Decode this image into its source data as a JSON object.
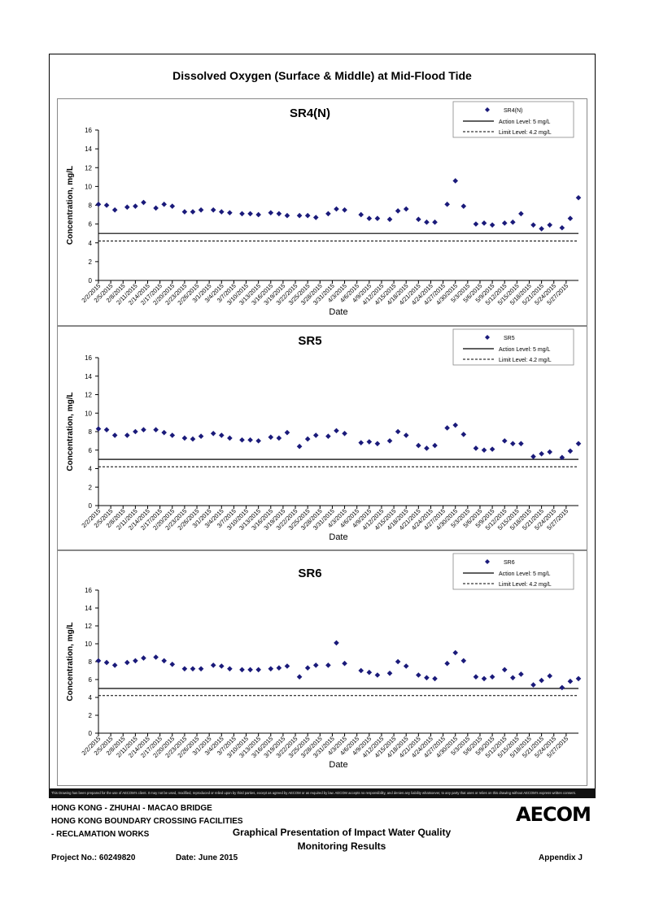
{
  "page": {
    "main_title": "Dissolved Oxygen (Surface & Middle) at Mid-Flood Tide",
    "disclaimer": "This Drawing has been prepared for the use of AECOM's client. It may not be used, modified, reproduced or relied upon by third parties, except as agreed by AECOM or as required by law. AECOM accepts no responsibility, and denies any liability whatsoever, to any party that uses or relies on this drawing without AECOM's express written consent.",
    "footer": {
      "line1": "HONG KONG - ZHUHAI - MACAO BRIDGE",
      "line2": "HONG KONG BOUNDARY CROSSING FACILITIES",
      "line3": "- RECLAMATION WORKS",
      "report_title_1": "Graphical Presentation of Impact Water Quality",
      "report_title_2": "Monitoring Results",
      "project_no": "Project No.: 60249820",
      "date": "Date: June 2015",
      "appendix": "Appendix J",
      "logo": "AECOM"
    }
  },
  "chart_data": [
    {
      "type": "scatter",
      "title": "SR4(N)",
      "xlabel": "Date",
      "ylabel": "Concentration, mg/L",
      "ylim": [
        0,
        16
      ],
      "yticks": [
        0,
        2,
        4,
        6,
        8,
        10,
        12,
        14,
        16
      ],
      "xticks": [
        "2/2/2015",
        "2/5/2015",
        "2/8/2015",
        "2/11/2015",
        "2/14/2015",
        "2/17/2015",
        "2/20/2015",
        "2/23/2015",
        "2/26/2015",
        "3/1/2015",
        "3/4/2015",
        "3/7/2015",
        "3/10/2015",
        "3/13/2015",
        "3/16/2015",
        "3/19/2015",
        "3/22/2015",
        "3/25/2015",
        "3/28/2015",
        "3/31/2015",
        "4/3/2015",
        "4/6/2015",
        "4/9/2015",
        "4/12/2015",
        "4/15/2015",
        "4/18/2015",
        "4/21/2015",
        "4/24/2015",
        "4/27/2015",
        "4/30/2015",
        "5/3/2015",
        "5/6/2015",
        "5/9/2015",
        "5/12/2015",
        "5/15/2015",
        "5/18/2015",
        "5/21/2015",
        "5/24/2015",
        "5/27/2015"
      ],
      "legend": {
        "position": "top-right",
        "entries": [
          "SR4(N)",
          "Action Level: 5 mg/L",
          "Limit Level: 4.2 mg/L"
        ]
      },
      "action_level": 5,
      "limit_level": 4.2,
      "series": [
        {
          "name": "SR4(N)",
          "points": [
            [
              "2/2/2015",
              8.1
            ],
            [
              "2/4/2015",
              8.0
            ],
            [
              "2/6/2015",
              7.5
            ],
            [
              "2/9/2015",
              7.8
            ],
            [
              "2/11/2015",
              7.9
            ],
            [
              "2/13/2015",
              8.3
            ],
            [
              "2/16/2015",
              7.7
            ],
            [
              "2/18/2015",
              8.1
            ],
            [
              "2/20/2015",
              7.9
            ],
            [
              "2/23/2015",
              7.3
            ],
            [
              "2/25/2015",
              7.3
            ],
            [
              "2/27/2015",
              7.5
            ],
            [
              "3/2/2015",
              7.5
            ],
            [
              "3/4/2015",
              7.3
            ],
            [
              "3/6/2015",
              7.2
            ],
            [
              "3/9/2015",
              7.1
            ],
            [
              "3/11/2015",
              7.1
            ],
            [
              "3/13/2015",
              7.0
            ],
            [
              "3/16/2015",
              7.2
            ],
            [
              "3/18/2015",
              7.1
            ],
            [
              "3/20/2015",
              6.9
            ],
            [
              "3/23/2015",
              6.9
            ],
            [
              "3/25/2015",
              6.9
            ],
            [
              "3/27/2015",
              6.7
            ],
            [
              "3/30/2015",
              7.1
            ],
            [
              "4/1/2015",
              7.6
            ],
            [
              "4/3/2015",
              7.5
            ],
            [
              "4/7/2015",
              7.0
            ],
            [
              "4/9/2015",
              6.6
            ],
            [
              "4/11/2015",
              6.6
            ],
            [
              "4/14/2015",
              6.5
            ],
            [
              "4/16/2015",
              7.4
            ],
            [
              "4/18/2015",
              7.6
            ],
            [
              "4/21/2015",
              6.5
            ],
            [
              "4/23/2015",
              6.2
            ],
            [
              "4/25/2015",
              6.2
            ],
            [
              "4/28/2015",
              8.1
            ],
            [
              "4/30/2015",
              10.6
            ],
            [
              "5/2/2015",
              7.9
            ],
            [
              "5/5/2015",
              6.0
            ],
            [
              "5/7/2015",
              6.1
            ],
            [
              "5/9/2015",
              5.9
            ],
            [
              "5/12/2015",
              6.1
            ],
            [
              "5/14/2015",
              6.2
            ],
            [
              "5/16/2015",
              7.1
            ],
            [
              "5/19/2015",
              5.9
            ],
            [
              "5/21/2015",
              5.5
            ],
            [
              "5/23/2015",
              5.9
            ],
            [
              "5/26/2015",
              5.6
            ],
            [
              "5/28/2015",
              6.6
            ],
            [
              "5/30/2015",
              8.8
            ]
          ]
        }
      ]
    },
    {
      "type": "scatter",
      "title": "SR5",
      "xlabel": "Date",
      "ylabel": "Concentration, mg/L",
      "ylim": [
        0,
        16
      ],
      "yticks": [
        0,
        2,
        4,
        6,
        8,
        10,
        12,
        14,
        16
      ],
      "xticks": [
        "2/2/2015",
        "2/5/2015",
        "2/8/2015",
        "2/11/2015",
        "2/14/2015",
        "2/17/2015",
        "2/20/2015",
        "2/23/2015",
        "2/26/2015",
        "3/1/2015",
        "3/4/2015",
        "3/7/2015",
        "3/10/2015",
        "3/13/2015",
        "3/16/2015",
        "3/19/2015",
        "3/22/2015",
        "3/25/2015",
        "3/28/2015",
        "3/31/2015",
        "4/3/2015",
        "4/6/2015",
        "4/9/2015",
        "4/12/2015",
        "4/15/2015",
        "4/18/2015",
        "4/21/2015",
        "4/24/2015",
        "4/27/2015",
        "4/30/2015",
        "5/3/2015",
        "5/6/2015",
        "5/9/2015",
        "5/12/2015",
        "5/15/2015",
        "5/18/2015",
        "5/21/2015",
        "5/24/2015",
        "5/27/2015"
      ],
      "legend": {
        "position": "top-right",
        "entries": [
          "SR5",
          "Action Level: 5 mg/L",
          "Limit Level: 4.2 mg/L"
        ]
      },
      "action_level": 5,
      "limit_level": 4.2,
      "series": [
        {
          "name": "SR5",
          "points": [
            [
              "2/2/2015",
              8.3
            ],
            [
              "2/4/2015",
              8.2
            ],
            [
              "2/6/2015",
              7.6
            ],
            [
              "2/9/2015",
              7.6
            ],
            [
              "2/11/2015",
              8.0
            ],
            [
              "2/13/2015",
              8.2
            ],
            [
              "2/16/2015",
              8.2
            ],
            [
              "2/18/2015",
              7.9
            ],
            [
              "2/20/2015",
              7.6
            ],
            [
              "2/23/2015",
              7.3
            ],
            [
              "2/25/2015",
              7.2
            ],
            [
              "2/27/2015",
              7.5
            ],
            [
              "3/2/2015",
              7.8
            ],
            [
              "3/4/2015",
              7.6
            ],
            [
              "3/6/2015",
              7.3
            ],
            [
              "3/9/2015",
              7.1
            ],
            [
              "3/11/2015",
              7.1
            ],
            [
              "3/13/2015",
              7.0
            ],
            [
              "3/16/2015",
              7.4
            ],
            [
              "3/18/2015",
              7.3
            ],
            [
              "3/20/2015",
              7.9
            ],
            [
              "3/23/2015",
              6.4
            ],
            [
              "3/25/2015",
              7.2
            ],
            [
              "3/27/2015",
              7.6
            ],
            [
              "3/30/2015",
              7.5
            ],
            [
              "4/1/2015",
              8.1
            ],
            [
              "4/3/2015",
              7.8
            ],
            [
              "4/7/2015",
              6.8
            ],
            [
              "4/9/2015",
              6.9
            ],
            [
              "4/11/2015",
              6.7
            ],
            [
              "4/14/2015",
              7.0
            ],
            [
              "4/16/2015",
              8.0
            ],
            [
              "4/18/2015",
              7.6
            ],
            [
              "4/21/2015",
              6.5
            ],
            [
              "4/23/2015",
              6.2
            ],
            [
              "4/25/2015",
              6.5
            ],
            [
              "4/28/2015",
              8.4
            ],
            [
              "4/30/2015",
              8.7
            ],
            [
              "5/2/2015",
              7.7
            ],
            [
              "5/5/2015",
              6.2
            ],
            [
              "5/7/2015",
              6.0
            ],
            [
              "5/9/2015",
              6.1
            ],
            [
              "5/12/2015",
              7.0
            ],
            [
              "5/14/2015",
              6.7
            ],
            [
              "5/16/2015",
              6.7
            ],
            [
              "5/19/2015",
              5.3
            ],
            [
              "5/21/2015",
              5.6
            ],
            [
              "5/23/2015",
              5.8
            ],
            [
              "5/26/2015",
              5.2
            ],
            [
              "5/28/2015",
              5.9
            ],
            [
              "5/30/2015",
              6.7
            ]
          ]
        }
      ]
    },
    {
      "type": "scatter",
      "title": "SR6",
      "xlabel": "Date",
      "ylabel": "Concentration, mg/L",
      "ylim": [
        0,
        16
      ],
      "yticks": [
        0,
        2,
        4,
        6,
        8,
        10,
        12,
        14,
        16
      ],
      "xticks": [
        "2/2/2015",
        "2/5/2015",
        "2/8/2015",
        "2/11/2015",
        "2/14/2015",
        "2/17/2015",
        "2/20/2015",
        "2/23/2015",
        "2/26/2015",
        "3/1/2015",
        "3/4/2015",
        "3/7/2015",
        "3/10/2015",
        "3/13/2015",
        "3/16/2015",
        "3/19/2015",
        "3/22/2015",
        "3/25/2015",
        "3/28/2015",
        "3/31/2015",
        "4/3/2015",
        "4/6/2015",
        "4/9/2015",
        "4/12/2015",
        "4/15/2015",
        "4/18/2015",
        "4/21/2015",
        "4/24/2015",
        "4/27/2015",
        "4/30/2015",
        "5/3/2015",
        "5/6/2015",
        "5/9/2015",
        "5/12/2015",
        "5/15/2015",
        "5/18/2015",
        "5/21/2015",
        "5/24/2015",
        "5/27/2015"
      ],
      "legend": {
        "position": "top-right",
        "entries": [
          "SR6",
          "Action Level: 5 mg/L",
          "Limit Level: 4.2 mg/L"
        ]
      },
      "action_level": 5,
      "limit_level": 4.2,
      "series": [
        {
          "name": "SR6",
          "points": [
            [
              "2/2/2015",
              8.1
            ],
            [
              "2/4/2015",
              7.9
            ],
            [
              "2/6/2015",
              7.6
            ],
            [
              "2/9/2015",
              7.9
            ],
            [
              "2/11/2015",
              8.1
            ],
            [
              "2/13/2015",
              8.4
            ],
            [
              "2/16/2015",
              8.5
            ],
            [
              "2/18/2015",
              8.1
            ],
            [
              "2/20/2015",
              7.7
            ],
            [
              "2/23/2015",
              7.2
            ],
            [
              "2/25/2015",
              7.2
            ],
            [
              "2/27/2015",
              7.2
            ],
            [
              "3/2/2015",
              7.6
            ],
            [
              "3/4/2015",
              7.5
            ],
            [
              "3/6/2015",
              7.2
            ],
            [
              "3/9/2015",
              7.1
            ],
            [
              "3/11/2015",
              7.1
            ],
            [
              "3/13/2015",
              7.1
            ],
            [
              "3/16/2015",
              7.2
            ],
            [
              "3/18/2015",
              7.3
            ],
            [
              "3/20/2015",
              7.5
            ],
            [
              "3/23/2015",
              6.3
            ],
            [
              "3/25/2015",
              7.3
            ],
            [
              "3/27/2015",
              7.6
            ],
            [
              "3/30/2015",
              7.6
            ],
            [
              "4/1/2015",
              10.1
            ],
            [
              "4/3/2015",
              7.8
            ],
            [
              "4/7/2015",
              7.0
            ],
            [
              "4/9/2015",
              6.8
            ],
            [
              "4/11/2015",
              6.5
            ],
            [
              "4/14/2015",
              6.7
            ],
            [
              "4/16/2015",
              8.0
            ],
            [
              "4/18/2015",
              7.5
            ],
            [
              "4/21/2015",
              6.5
            ],
            [
              "4/23/2015",
              6.2
            ],
            [
              "4/25/2015",
              6.1
            ],
            [
              "4/28/2015",
              7.8
            ],
            [
              "4/30/2015",
              9.0
            ],
            [
              "5/2/2015",
              8.1
            ],
            [
              "5/5/2015",
              6.3
            ],
            [
              "5/7/2015",
              6.1
            ],
            [
              "5/9/2015",
              6.3
            ],
            [
              "5/12/2015",
              7.1
            ],
            [
              "5/14/2015",
              6.2
            ],
            [
              "5/16/2015",
              6.6
            ],
            [
              "5/19/2015",
              5.4
            ],
            [
              "5/21/2015",
              5.9
            ],
            [
              "5/23/2015",
              6.4
            ],
            [
              "5/26/2015",
              5.1
            ],
            [
              "5/28/2015",
              5.8
            ],
            [
              "5/30/2015",
              6.1
            ]
          ]
        }
      ]
    }
  ]
}
